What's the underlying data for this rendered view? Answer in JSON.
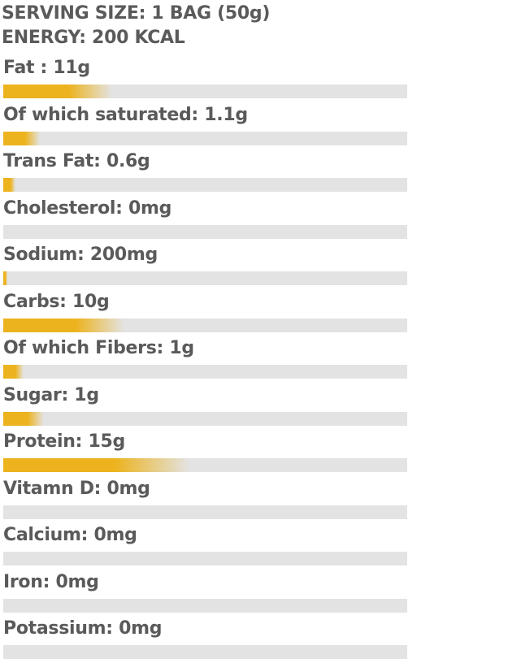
{
  "header": {
    "serving": "SERVING SIZE: 1 BAG (50g)",
    "energy": "ENERGY: 200 KCAL"
  },
  "nutrients": [
    {
      "label": "Fat : 11g",
      "level": 0.27
    },
    {
      "label": "Of which saturated: 1.1g",
      "level": 0.09
    },
    {
      "label": "Trans Fat: 0.6g",
      "level": 0.03
    },
    {
      "label": "Cholesterol: 0mg",
      "level": 0
    },
    {
      "label": "Sodium: 200mg",
      "level": 0.01
    },
    {
      "label": "Carbs: 10g",
      "level": 0.3
    },
    {
      "label": "Of which Fibers: 1g",
      "level": 0.05
    },
    {
      "label": "Sugar: 1g",
      "level": 0.1
    },
    {
      "label": "Protein: 15g",
      "level": 0.46
    },
    {
      "label": "Vitamn D: 0mg",
      "level": 0
    },
    {
      "label": "Calcium: 0mg",
      "level": 0
    },
    {
      "label": "Iron: 0mg",
      "level": 0
    },
    {
      "label": "Potassium: 0mg",
      "level": 0
    }
  ]
}
